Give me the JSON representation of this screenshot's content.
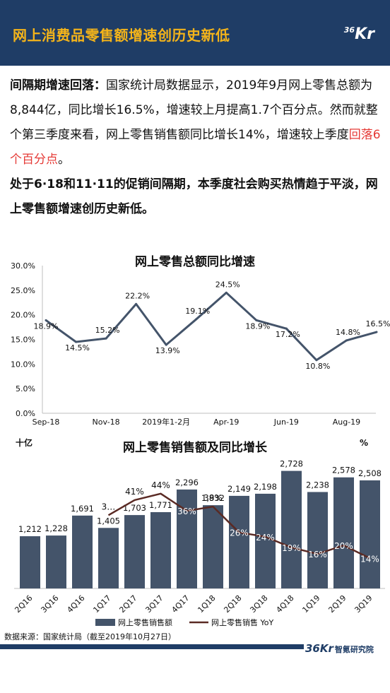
{
  "header": {
    "title": "网上消费品零售额增速创历史新低",
    "logo_sup": "36",
    "logo_main": "Kr"
  },
  "paragraph": {
    "lead": "间隔期增速回落：",
    "body": "国家统计局数据显示，2019年9月网上零售总额为8,844亿，同比增长16.5%，增速较上月提高1.7个百分点。然而就整个第三季度来看，网上零售销售额同比增长14%，增速较上季度",
    "highlight": "回落6个百分点",
    "end": "。",
    "bold_tail": "处于6·18和11·11的促销间隔期，本季度社会购买热情趋于平淡，网上零售额增速创历史新低。"
  },
  "chart_data": [
    {
      "type": "line",
      "title": "网上零售总额同比增速",
      "x_ticks": [
        "Sep-18",
        "Nov-18",
        "2019年1-2月",
        "Apr-19",
        "Jun-19",
        "Aug-19"
      ],
      "x": [
        "Sep-18",
        "Oct-18",
        "Nov-18",
        "Dec-18",
        "2019年1-2月",
        "Mar-19",
        "Apr-19",
        "May-19",
        "Jun-19",
        "Jul-19",
        "Aug-19",
        "Sep-19"
      ],
      "series": [
        {
          "values": [
            18.9,
            14.5,
            15.2,
            22.2,
            13.9,
            19.1,
            24.5,
            18.9,
            17.2,
            10.8,
            14.8,
            16.5
          ],
          "labels": [
            "18.9%",
            "14.5%",
            "15.2%",
            "22.2%",
            "13.9%",
            "19.1%",
            "24.5%",
            "18.9%",
            "17.2%",
            "10.8%",
            "14.8%",
            "16.5%"
          ],
          "color": "#44546a"
        }
      ],
      "y_ticks": [
        "0.0%",
        "5.0%",
        "10.0%",
        "15.0%",
        "20.0%",
        "25.0%",
        "30.0%"
      ],
      "ylim": [
        0,
        30
      ]
    },
    {
      "type": "bar",
      "title": "网上零售销售额及同比增长",
      "left_unit": "十亿",
      "right_unit": "%",
      "categories": [
        "2Q16",
        "3Q16",
        "4Q16",
        "1Q17",
        "2Q17",
        "3Q17",
        "4Q17",
        "1Q18",
        "2Q18",
        "3Q18",
        "4Q18",
        "1Q19",
        "2Q19",
        "3Q19"
      ],
      "series": [
        {
          "name": "网上零售销售额",
          "values": [
            1212,
            1228,
            1691,
            1405,
            1703,
            1771,
            2296,
            1932,
            2149,
            2198,
            2728,
            2238,
            2578,
            2508
          ],
          "labels": [
            "1,212",
            "1,228",
            "1,691",
            "1,405",
            "1,703",
            "1,771",
            "2,296",
            "1,932",
            "2,149",
            "2,198",
            "2,728",
            "2,238",
            "2,578",
            "2,508"
          ],
          "color": "#44546a"
        },
        {
          "name": "网上零售销售 YoY",
          "values": [
            null,
            null,
            null,
            34,
            41,
            44,
            36,
            38,
            26,
            24,
            19,
            16,
            20,
            14
          ],
          "labels": [
            "",
            "",
            "",
            "3…",
            "41%",
            "44%",
            "36%",
            "38%",
            "26%",
            "24%",
            "19%",
            "16%",
            "20%",
            "14%"
          ],
          "color": "#5a2a24"
        }
      ],
      "ylim_left": [
        0,
        3000
      ],
      "ylim_right": [
        0,
        60
      ]
    }
  ],
  "footer": {
    "source": "数据来源：国家统计局（截至2019年10月27日）",
    "brand_mark": "36Kr",
    "brand_name": "智氪研究院"
  }
}
